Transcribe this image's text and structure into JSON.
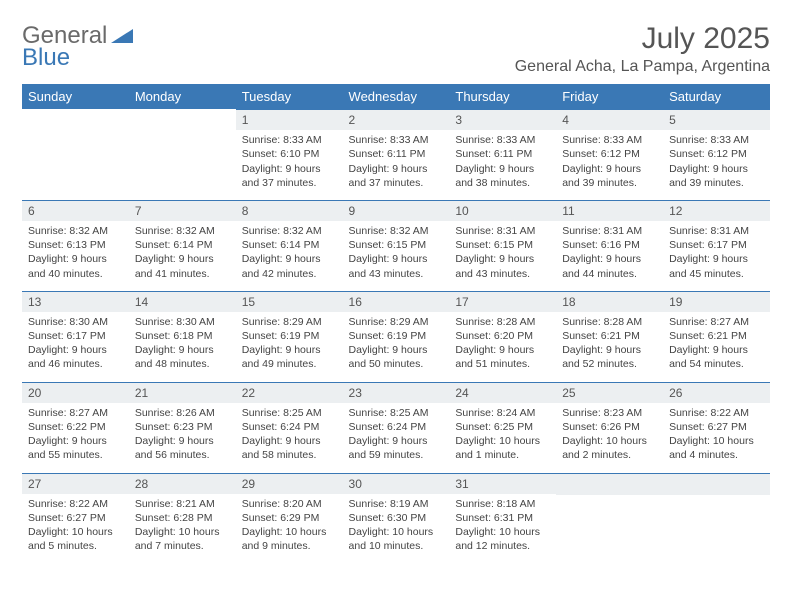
{
  "logo": {
    "part1": "General",
    "part2": "Blue"
  },
  "title": "July 2025",
  "location": "General Acha, La Pampa, Argentina",
  "colors": {
    "header_bg": "#3a78b5",
    "dayrow_bg": "#eceff1",
    "border": "#3a78b5",
    "text": "#444"
  },
  "font": {
    "family": "Arial",
    "title_size": 30,
    "location_size": 16,
    "header_size": 13,
    "daynum_size": 12,
    "body_size": 10.5
  },
  "weekdays": [
    "Sunday",
    "Monday",
    "Tuesday",
    "Wednesday",
    "Thursday",
    "Friday",
    "Saturday"
  ],
  "weeks": [
    [
      null,
      null,
      {
        "n": "1",
        "sunrise": "8:33 AM",
        "sunset": "6:10 PM",
        "daylight": "9 hours and 37 minutes."
      },
      {
        "n": "2",
        "sunrise": "8:33 AM",
        "sunset": "6:11 PM",
        "daylight": "9 hours and 37 minutes."
      },
      {
        "n": "3",
        "sunrise": "8:33 AM",
        "sunset": "6:11 PM",
        "daylight": "9 hours and 38 minutes."
      },
      {
        "n": "4",
        "sunrise": "8:33 AM",
        "sunset": "6:12 PM",
        "daylight": "9 hours and 39 minutes."
      },
      {
        "n": "5",
        "sunrise": "8:33 AM",
        "sunset": "6:12 PM",
        "daylight": "9 hours and 39 minutes."
      }
    ],
    [
      {
        "n": "6",
        "sunrise": "8:32 AM",
        "sunset": "6:13 PM",
        "daylight": "9 hours and 40 minutes."
      },
      {
        "n": "7",
        "sunrise": "8:32 AM",
        "sunset": "6:14 PM",
        "daylight": "9 hours and 41 minutes."
      },
      {
        "n": "8",
        "sunrise": "8:32 AM",
        "sunset": "6:14 PM",
        "daylight": "9 hours and 42 minutes."
      },
      {
        "n": "9",
        "sunrise": "8:32 AM",
        "sunset": "6:15 PM",
        "daylight": "9 hours and 43 minutes."
      },
      {
        "n": "10",
        "sunrise": "8:31 AM",
        "sunset": "6:15 PM",
        "daylight": "9 hours and 43 minutes."
      },
      {
        "n": "11",
        "sunrise": "8:31 AM",
        "sunset": "6:16 PM",
        "daylight": "9 hours and 44 minutes."
      },
      {
        "n": "12",
        "sunrise": "8:31 AM",
        "sunset": "6:17 PM",
        "daylight": "9 hours and 45 minutes."
      }
    ],
    [
      {
        "n": "13",
        "sunrise": "8:30 AM",
        "sunset": "6:17 PM",
        "daylight": "9 hours and 46 minutes."
      },
      {
        "n": "14",
        "sunrise": "8:30 AM",
        "sunset": "6:18 PM",
        "daylight": "9 hours and 48 minutes."
      },
      {
        "n": "15",
        "sunrise": "8:29 AM",
        "sunset": "6:19 PM",
        "daylight": "9 hours and 49 minutes."
      },
      {
        "n": "16",
        "sunrise": "8:29 AM",
        "sunset": "6:19 PM",
        "daylight": "9 hours and 50 minutes."
      },
      {
        "n": "17",
        "sunrise": "8:28 AM",
        "sunset": "6:20 PM",
        "daylight": "9 hours and 51 minutes."
      },
      {
        "n": "18",
        "sunrise": "8:28 AM",
        "sunset": "6:21 PM",
        "daylight": "9 hours and 52 minutes."
      },
      {
        "n": "19",
        "sunrise": "8:27 AM",
        "sunset": "6:21 PM",
        "daylight": "9 hours and 54 minutes."
      }
    ],
    [
      {
        "n": "20",
        "sunrise": "8:27 AM",
        "sunset": "6:22 PM",
        "daylight": "9 hours and 55 minutes."
      },
      {
        "n": "21",
        "sunrise": "8:26 AM",
        "sunset": "6:23 PM",
        "daylight": "9 hours and 56 minutes."
      },
      {
        "n": "22",
        "sunrise": "8:25 AM",
        "sunset": "6:24 PM",
        "daylight": "9 hours and 58 minutes."
      },
      {
        "n": "23",
        "sunrise": "8:25 AM",
        "sunset": "6:24 PM",
        "daylight": "9 hours and 59 minutes."
      },
      {
        "n": "24",
        "sunrise": "8:24 AM",
        "sunset": "6:25 PM",
        "daylight": "10 hours and 1 minute."
      },
      {
        "n": "25",
        "sunrise": "8:23 AM",
        "sunset": "6:26 PM",
        "daylight": "10 hours and 2 minutes."
      },
      {
        "n": "26",
        "sunrise": "8:22 AM",
        "sunset": "6:27 PM",
        "daylight": "10 hours and 4 minutes."
      }
    ],
    [
      {
        "n": "27",
        "sunrise": "8:22 AM",
        "sunset": "6:27 PM",
        "daylight": "10 hours and 5 minutes."
      },
      {
        "n": "28",
        "sunrise": "8:21 AM",
        "sunset": "6:28 PM",
        "daylight": "10 hours and 7 minutes."
      },
      {
        "n": "29",
        "sunrise": "8:20 AM",
        "sunset": "6:29 PM",
        "daylight": "10 hours and 9 minutes."
      },
      {
        "n": "30",
        "sunrise": "8:19 AM",
        "sunset": "6:30 PM",
        "daylight": "10 hours and 10 minutes."
      },
      {
        "n": "31",
        "sunrise": "8:18 AM",
        "sunset": "6:31 PM",
        "daylight": "10 hours and 12 minutes."
      },
      null,
      null
    ]
  ],
  "labels": {
    "sunrise": "Sunrise:",
    "sunset": "Sunset:",
    "daylight": "Daylight:"
  }
}
